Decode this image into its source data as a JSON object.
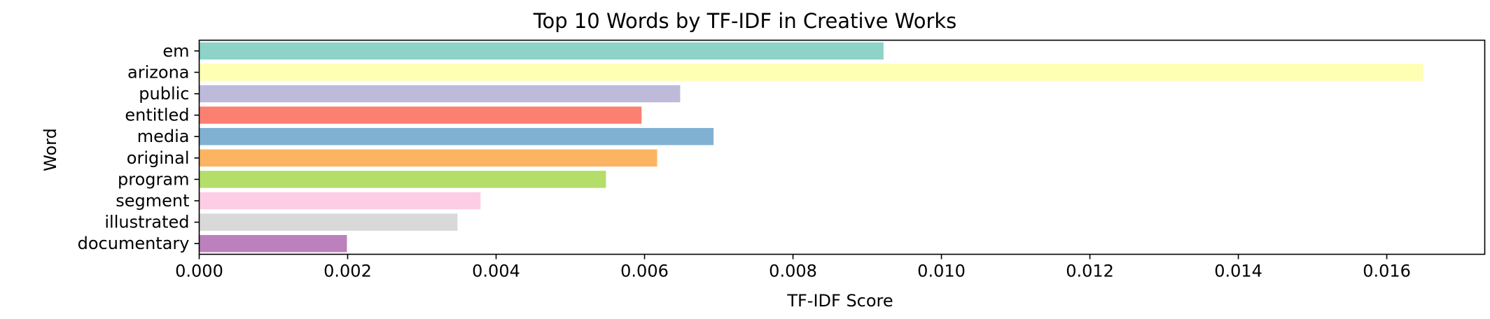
{
  "chart_data": {
    "type": "bar",
    "orientation": "horizontal",
    "title": "Top 10 Words by TF-IDF in Creative Works",
    "xlabel": "TF-IDF Score",
    "ylabel": "Word",
    "categories": [
      "em",
      "arizona",
      "public",
      "entitled",
      "media",
      "original",
      "program",
      "segment",
      "illustrated",
      "documentary"
    ],
    "values": [
      0.00922,
      0.01649,
      0.00648,
      0.00596,
      0.00693,
      0.00617,
      0.00548,
      0.00379,
      0.00348,
      0.00199
    ],
    "colors": [
      "#8dd3c7",
      "#ffffb3",
      "#bebada",
      "#fb8072",
      "#80b1d3",
      "#fdb462",
      "#b3de69",
      "#fccde5",
      "#d9d9d9",
      "#bc80bd"
    ],
    "xlim": [
      0,
      0.01732
    ],
    "xticks": [
      0.0,
      0.002,
      0.004,
      0.006,
      0.008,
      0.01,
      0.012,
      0.014,
      0.016
    ],
    "xtick_labels": [
      "0.000",
      "0.002",
      "0.004",
      "0.006",
      "0.008",
      "0.010",
      "0.012",
      "0.014",
      "0.016"
    ],
    "grid": false,
    "legend": "none"
  }
}
